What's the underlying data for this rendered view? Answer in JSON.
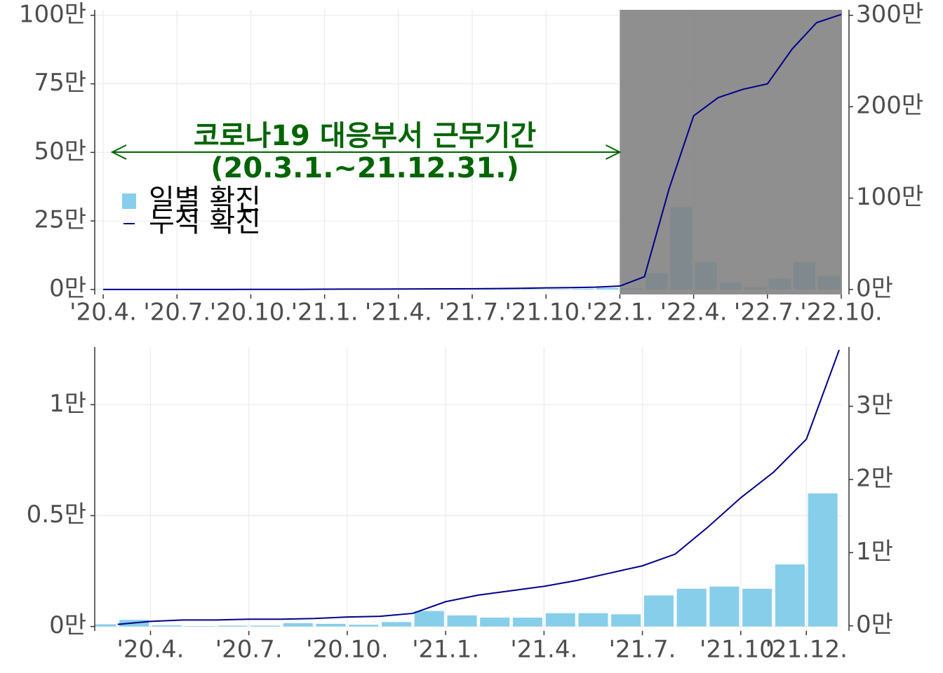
{
  "chart_data": [
    {
      "type": "bar-line",
      "x": [
        "2020-03",
        "2020-04",
        "2020-05",
        "2020-06",
        "2020-07",
        "2020-08",
        "2020-09",
        "2020-10",
        "2020-11",
        "2020-12",
        "2021-01",
        "2021-02",
        "2021-03",
        "2021-04",
        "2021-05",
        "2021-06",
        "2021-07",
        "2021-08",
        "2021-09",
        "2021-10",
        "2021-11",
        "2021-12",
        "2022-01",
        "2022-02",
        "2022-03",
        "2022-04",
        "2022-05",
        "2022-06",
        "2022-07",
        "2022-08",
        "2022-09"
      ],
      "series": [
        {
          "name": "일별 확진",
          "color": "#87ceeb",
          "kind": "bar",
          "values": [
            0.03,
            0.005,
            0.002,
            0.004,
            0.004,
            0.015,
            0.012,
            0.008,
            0.02,
            0.07,
            0.05,
            0.04,
            0.04,
            0.06,
            0.06,
            0.055,
            0.14,
            0.17,
            0.18,
            0.17,
            0.28,
            0.6,
            0.5,
            6,
            30,
            10,
            2.5,
            0.8,
            4,
            10,
            5
          ]
        },
        {
          "name": "누적 확진",
          "color": "#00008b",
          "kind": "line",
          "axis": "y2",
          "values": [
            0.06,
            0.08,
            0.08,
            0.09,
            0.09,
            0.1,
            0.12,
            0.13,
            0.17,
            0.33,
            0.42,
            0.48,
            0.54,
            0.62,
            0.72,
            0.82,
            0.98,
            1.35,
            1.75,
            2.1,
            2.55,
            3.77,
            14,
            110,
            190,
            210,
            219,
            225,
            263,
            292,
            301
          ]
        }
      ],
      "xlim": [
        "2020-03",
        "2022-10"
      ],
      "xticks": [
        {
          "value": "2020-04",
          "label": "'20.4."
        },
        {
          "value": "2020-07",
          "label": "'20.7."
        },
        {
          "value": "2020-10",
          "label": "'20.10."
        },
        {
          "value": "2021-01",
          "label": "'21.1."
        },
        {
          "value": "2021-04",
          "label": "'21.4."
        },
        {
          "value": "2021-07",
          "label": "'21.7."
        },
        {
          "value": "2021-10",
          "label": "'21.10."
        },
        {
          "value": "2022-01",
          "label": "'22.1."
        },
        {
          "value": "2022-04",
          "label": "'22.4."
        },
        {
          "value": "2022-07",
          "label": "'22.7."
        },
        {
          "value": "2022-10",
          "label": "'22.10."
        }
      ],
      "ylim": [
        -1.8,
        102
      ],
      "yticks": [
        {
          "value": 0,
          "label": "0만"
        },
        {
          "value": 25,
          "label": "25만"
        },
        {
          "value": 50,
          "label": "50만"
        },
        {
          "value": 75,
          "label": "75만"
        },
        {
          "value": 100,
          "label": "100만"
        }
      ],
      "y2lim": [
        -5.4,
        306
      ],
      "y2ticks": [
        {
          "value": 0,
          "label": "0만"
        },
        {
          "value": 100,
          "label": "100만"
        },
        {
          "value": 200,
          "label": "200만"
        },
        {
          "value": 300,
          "label": "300만"
        }
      ],
      "grid": true,
      "legend": "upper left",
      "shade_from": "2022-01",
      "annotation": {
        "title": "코로나19 대응부서 근무기간",
        "subtitle": "(20.3.1.~21.12.31.)",
        "color": "#006400"
      }
    },
    {
      "type": "bar-line",
      "x": [
        "2020-02",
        "2020-03",
        "2020-04",
        "2020-05",
        "2020-06",
        "2020-07",
        "2020-08",
        "2020-09",
        "2020-10",
        "2020-11",
        "2020-12",
        "2021-01",
        "2021-02",
        "2021-03",
        "2021-04",
        "2021-05",
        "2021-06",
        "2021-07",
        "2021-08",
        "2021-09",
        "2021-10",
        "2021-11",
        "2021-12"
      ],
      "series": [
        {
          "color": "#87ceeb",
          "kind": "bar",
          "values": [
            0.01,
            0.03,
            0.005,
            0.002,
            0.004,
            0.004,
            0.015,
            0.012,
            0.008,
            0.02,
            0.07,
            0.05,
            0.04,
            0.04,
            0.06,
            0.06,
            0.055,
            0.14,
            0.17,
            0.18,
            0.17,
            0.28,
            0.6
          ]
        },
        {
          "color": "#00008b",
          "kind": "line",
          "axis": "y2",
          "values": [
            0.02,
            0.06,
            0.08,
            0.08,
            0.09,
            0.09,
            0.1,
            0.12,
            0.13,
            0.17,
            0.33,
            0.42,
            0.48,
            0.54,
            0.62,
            0.72,
            0.82,
            0.98,
            1.35,
            1.75,
            2.1,
            2.55,
            3.77
          ]
        }
      ],
      "xlim": [
        "2020-02",
        "2022-01"
      ],
      "xticks": [
        {
          "value": "2020-04",
          "label": "'20.4."
        },
        {
          "value": "2020-07",
          "label": "'20.7."
        },
        {
          "value": "2020-10",
          "label": "'20.10."
        },
        {
          "value": "2021-01",
          "label": "'21.1."
        },
        {
          "value": "2021-04",
          "label": "'21.4."
        },
        {
          "value": "2021-07",
          "label": "'21.7."
        },
        {
          "value": "2021-10",
          "label": "'21.10."
        },
        {
          "value": "2021-12",
          "label": "'21.12."
        }
      ],
      "ylim": [
        -0.02,
        1.26
      ],
      "yticks": [
        {
          "value": 0,
          "label": "0만"
        },
        {
          "value": 0.5,
          "label": "0.5만"
        },
        {
          "value": 1,
          "label": "1만"
        }
      ],
      "y2lim": [
        -0.07,
        3.81
      ],
      "y2ticks": [
        {
          "value": 0,
          "label": "0만"
        },
        {
          "value": 1,
          "label": "1만"
        },
        {
          "value": 2,
          "label": "2만"
        },
        {
          "value": 3,
          "label": "3만"
        }
      ],
      "grid": true
    }
  ]
}
